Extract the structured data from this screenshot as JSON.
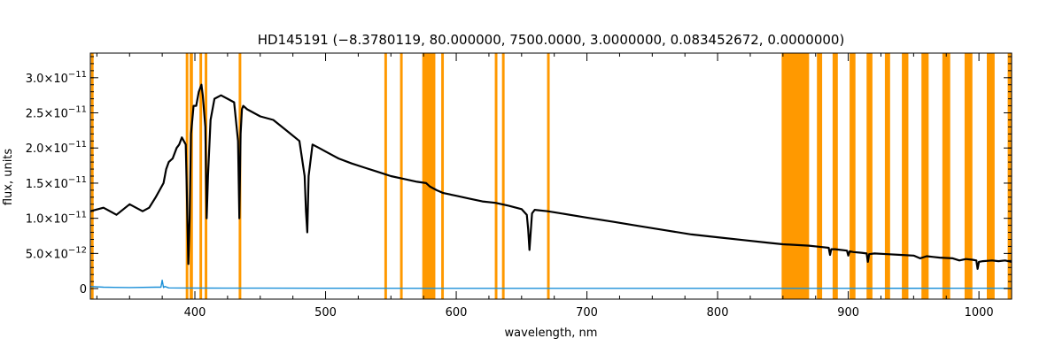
{
  "chart_data": {
    "type": "line",
    "title": "HD145191   (−8.3780119, 80.000000, 7500.0000, 3.0000000, 0.083452672, 0.0000000)",
    "xlabel": "wavelength, nm",
    "ylabel": "flux, units",
    "xlim": [
      320,
      1025
    ],
    "ylim": [
      -1.5e-12,
      3.35e-11
    ],
    "x_ticks": [
      400,
      500,
      600,
      700,
      800,
      900,
      1000
    ],
    "x_tick_labels": [
      "400",
      "500",
      "600",
      "700",
      "800",
      "900",
      "1000"
    ],
    "y_ticks": [
      0,
      5e-12,
      1e-11,
      1.5e-11,
      2e-11,
      2.5e-11,
      3e-11
    ],
    "y_tick_labels": [
      {
        "mantissa": "0",
        "exponent": ""
      },
      {
        "mantissa": "5.0×10",
        "exponent": "−12"
      },
      {
        "mantissa": "1.0×10",
        "exponent": "−11"
      },
      {
        "mantissa": "1.5×10",
        "exponent": "−11"
      },
      {
        "mantissa": "2.0×10",
        "exponent": "−11"
      },
      {
        "mantissa": "2.5×10",
        "exponent": "−11"
      },
      {
        "mantissa": "3.0×10",
        "exponent": "−11"
      }
    ],
    "grid": false,
    "legend": "none",
    "colors": {
      "spectrum": "#000000",
      "error": "#1a8fd8",
      "mask": "#ff9900",
      "axes": "#000000"
    },
    "masked_regions_nm": [
      [
        320.5,
        322.5
      ],
      [
        393.0,
        395.0
      ],
      [
        396.0,
        398.5
      ],
      [
        403.5,
        405.5
      ],
      [
        407.5,
        409.5
      ],
      [
        433.5,
        435.5
      ],
      [
        545.0,
        547.0
      ],
      [
        557.0,
        559.0
      ],
      [
        574.0,
        584.0
      ],
      [
        588.5,
        590.5
      ],
      [
        629.5,
        631.5
      ],
      [
        635.0,
        637.0
      ],
      [
        669.5,
        671.5
      ],
      [
        849.0,
        870.0
      ],
      [
        876.0,
        880.0
      ],
      [
        888.0,
        892.0
      ],
      [
        901.0,
        905.5
      ],
      [
        914.0,
        918.5
      ],
      [
        928.0,
        932.0
      ],
      [
        941.0,
        946.0
      ],
      [
        956.0,
        961.5
      ],
      [
        972.0,
        978.0
      ],
      [
        989.0,
        995.0
      ],
      [
        1006.0,
        1012.0
      ],
      [
        1022.0,
        1025.0
      ]
    ],
    "series": [
      {
        "x": [
          320,
          330,
          340,
          350,
          360,
          365,
          370,
          373,
          376,
          378,
          380,
          383,
          386,
          388,
          390,
          393,
          394,
          395,
          396,
          397,
          398,
          399,
          401,
          403,
          405,
          406,
          408,
          409,
          410,
          412,
          415,
          420,
          425,
          430,
          433,
          434,
          435,
          436,
          437,
          440,
          445,
          450,
          460,
          470,
          480,
          484,
          485,
          486,
          487,
          490,
          495,
          500,
          510,
          520,
          530,
          540,
          550,
          560,
          570,
          577,
          580,
          585,
          590,
          600,
          610,
          620,
          630,
          640,
          650,
          654,
          655,
          656,
          657,
          658,
          660,
          670,
          680,
          700,
          720,
          740,
          760,
          780,
          800,
          820,
          840,
          850,
          870,
          880,
          885,
          886,
          887,
          890,
          899,
          900,
          901,
          904,
          910,
          914,
          915,
          916,
          920,
          930,
          940,
          950,
          955,
          960,
          965,
          970,
          980,
          985,
          990,
          995,
          998,
          999,
          1000,
          1003,
          1010,
          1015,
          1020,
          1025
        ],
        "values": [
          1.1e-11,
          1.15e-11,
          1.05e-11,
          1.2e-11,
          1.1e-11,
          1.15e-11,
          1.3e-11,
          1.4e-11,
          1.5e-11,
          1.7e-11,
          1.8e-11,
          1.85e-11,
          2e-11,
          2.05e-11,
          2.15e-11,
          2.05e-11,
          1.2e-11,
          3.5e-12,
          1e-11,
          2.2e-11,
          2.4e-11,
          2.6e-11,
          2.6e-11,
          2.8e-11,
          2.9e-11,
          2.75e-11,
          2.3e-11,
          1e-11,
          1.6e-11,
          2.4e-11,
          2.7e-11,
          2.75e-11,
          2.7e-11,
          2.65e-11,
          2.1e-11,
          1e-11,
          2.2e-11,
          2.55e-11,
          2.6e-11,
          2.55e-11,
          2.5e-11,
          2.45e-11,
          2.4e-11,
          2.25e-11,
          2.1e-11,
          1.6e-11,
          1.1e-11,
          8e-12,
          1.6e-11,
          2.05e-11,
          2e-11,
          1.95e-11,
          1.85e-11,
          1.78e-11,
          1.72e-11,
          1.66e-11,
          1.6e-11,
          1.56e-11,
          1.52e-11,
          1.5e-11,
          1.45e-11,
          1.4e-11,
          1.36e-11,
          1.32e-11,
          1.28e-11,
          1.24e-11,
          1.22e-11,
          1.18e-11,
          1.13e-11,
          1.05e-11,
          8.5e-12,
          5.5e-12,
          8e-12,
          1.07e-11,
          1.12e-11,
          1.1e-11,
          1.07e-11,
          1.01e-11,
          9.5e-12,
          8.9e-12,
          8.3e-12,
          7.7e-12,
          7.3e-12,
          6.9e-12,
          6.5e-12,
          6.3e-12,
          6.1e-12,
          5.9e-12,
          5.8e-12,
          4.8e-12,
          5.6e-12,
          5.6e-12,
          5.4e-12,
          4.7e-12,
          5.3e-12,
          5.2e-12,
          5.1e-12,
          5e-12,
          3.8e-12,
          4.9e-12,
          5e-12,
          4.9e-12,
          4.8e-12,
          4.7e-12,
          4.3e-12,
          4.6e-12,
          4.5e-12,
          4.4e-12,
          4.3e-12,
          4e-12,
          4.2e-12,
          4.1e-12,
          4e-12,
          2.8e-12,
          3.8e-12,
          3.9e-12,
          4e-12,
          3.9e-12,
          4e-12,
          3.8e-12
        ],
        "color": "#000000"
      },
      {
        "x": [
          320,
          330,
          350,
          370,
          374,
          375,
          376,
          377,
          380,
          400,
          450,
          500,
          600,
          700,
          800,
          900,
          1000,
          1025
        ],
        "values": [
          3e-13,
          2e-13,
          1.5e-13,
          2e-13,
          2e-13,
          1.2e-12,
          1.5e-13,
          3e-13,
          1e-13,
          8e-14,
          6e-14,
          5e-14,
          4e-14,
          3.5e-14,
          3e-14,
          4e-14,
          5e-14,
          5e-14
        ],
        "color": "#1a8fd8"
      }
    ]
  }
}
